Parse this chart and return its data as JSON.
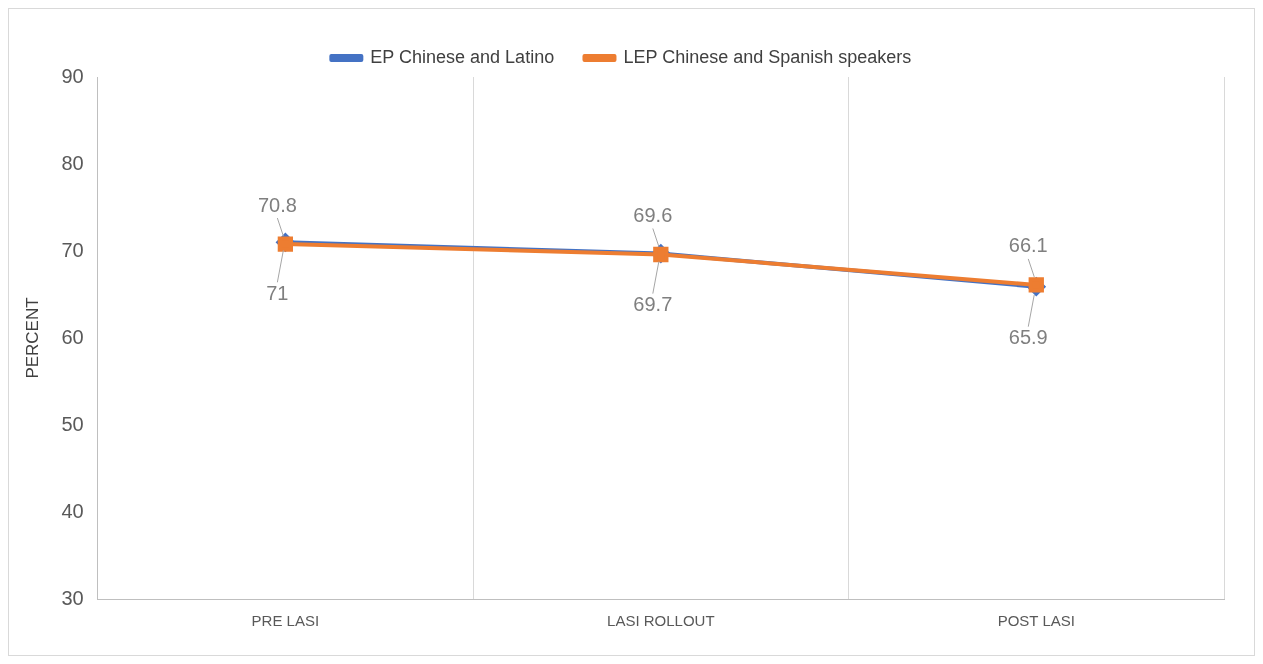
{
  "chart_data": {
    "type": "line",
    "ylabel": "PERCENT",
    "categories": [
      "PRE LASI",
      "LASI ROLLOUT",
      "POST LASI"
    ],
    "series": [
      {
        "name": "EP Chinese and Latino",
        "color": "#4472c4",
        "marker": "diamond",
        "values": [
          71,
          69.7,
          65.9
        ]
      },
      {
        "name": "LEP Chinese and Spanish speakers",
        "color": "#ed7d31",
        "marker": "square",
        "values": [
          70.8,
          69.6,
          66.1
        ]
      }
    ],
    "ylim": [
      30,
      90
    ],
    "yticks": [
      30,
      40,
      50,
      60,
      70,
      80,
      90
    ],
    "grid": "x",
    "legend": "top",
    "data_labels": true,
    "line_style": "solid"
  }
}
